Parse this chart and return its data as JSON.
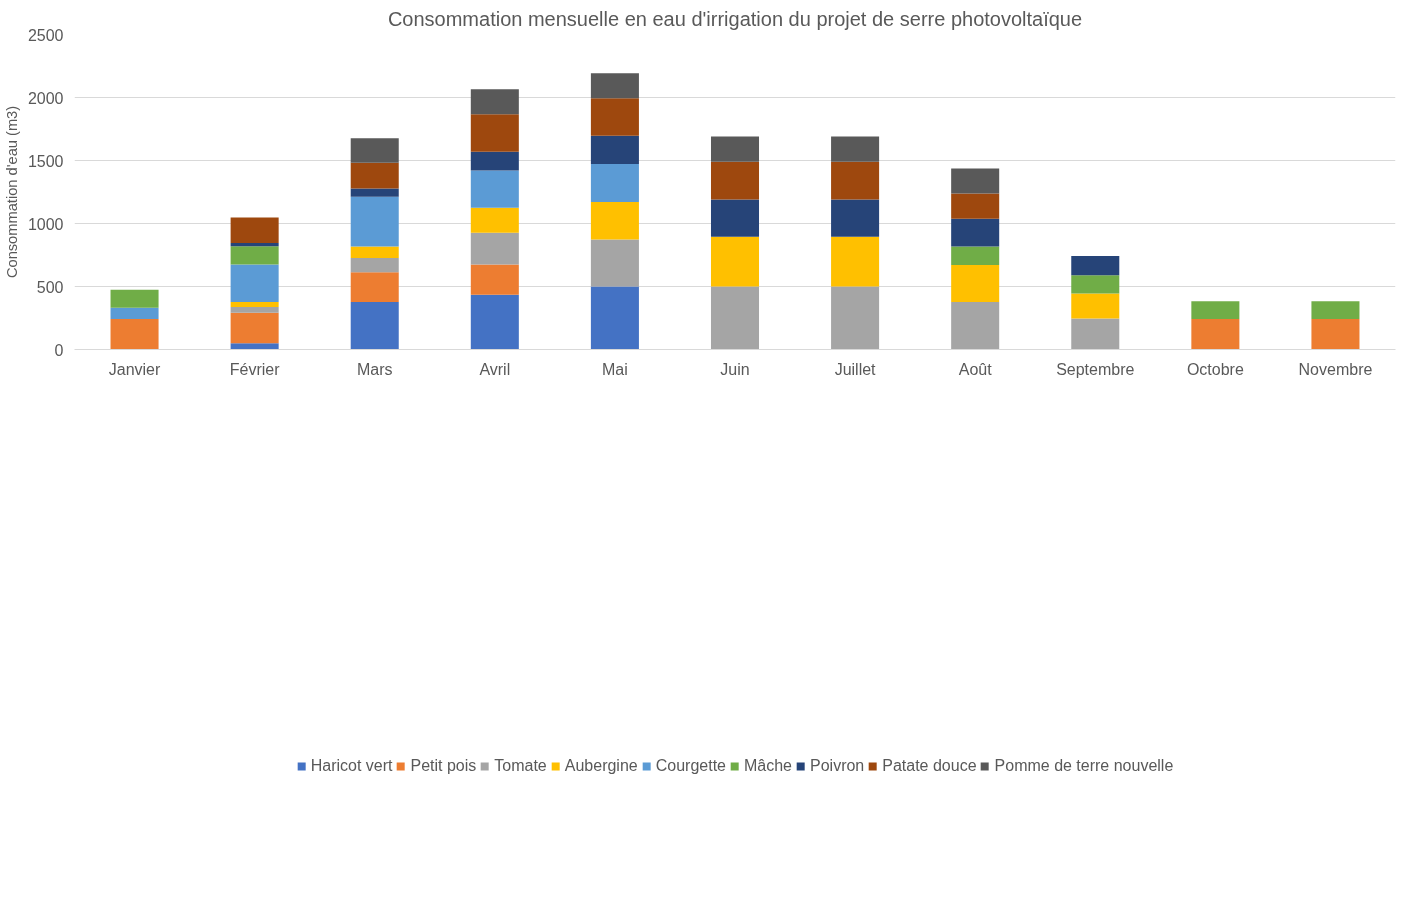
{
  "chart_data": {
    "type": "bar",
    "stacked": true,
    "title": "Consommation mensuelle en eau d'irrigation du projet de serre photovoltaïque",
    "ylabel": "Consommation d'eau (m3)",
    "categories": [
      "Janvier",
      "Février",
      "Mars",
      "Avril",
      "Mai",
      "Juin",
      "Juillet",
      "Août",
      "Septembre",
      "Octobre",
      "Novembre"
    ],
    "ylim": [
      0,
      2500
    ],
    "yticks": [
      0,
      500,
      1000,
      1500,
      2000,
      2500
    ],
    "grid": "y",
    "legend": "bottom",
    "series": [
      {
        "name": "Haricot vert",
        "color": "#4472c4",
        "values": [
          null,
          49,
          376,
          434,
          500,
          null,
          null,
          null,
          null,
          null,
          null
        ]
      },
      {
        "name": "Petit pois",
        "color": "#ed7d31",
        "values": [
          243,
          243,
          237,
          240,
          null,
          null,
          null,
          null,
          null,
          243,
          243
        ]
      },
      {
        "name": "Tomate",
        "color": "#a5a5a5",
        "values": [
          null,
          45,
          113,
          253,
          373,
          500,
          500,
          376,
          246,
          null,
          null
        ]
      },
      {
        "name": "Aubergine",
        "color": "#ffc000",
        "values": [
          null,
          39,
          91,
          198,
          298,
          395,
          395,
          295,
          198,
          null,
          null
        ]
      },
      {
        "name": "Courgette",
        "color": "#5b9bd5",
        "values": [
          88,
          298,
          396,
          295,
          302,
          null,
          null,
          null,
          null,
          null,
          null
        ]
      },
      {
        "name": "Mâche",
        "color": "#70ad47",
        "values": [
          143,
          146,
          null,
          null,
          null,
          null,
          null,
          146,
          146,
          139,
          139
        ]
      },
      {
        "name": "Poivron",
        "color": "#264478",
        "values": [
          null,
          26,
          65,
          149,
          224,
          295,
          295,
          220,
          152,
          null,
          null
        ]
      },
      {
        "name": "Patate douce",
        "color": "#9e480e",
        "values": [
          null,
          201,
          204,
          298,
          298,
          300,
          300,
          201,
          null,
          null,
          null
        ]
      },
      {
        "name": "Pomme de terre nouvelle",
        "color": "#595959",
        "values": [
          null,
          null,
          195,
          198,
          198,
          200,
          200,
          198,
          null,
          null,
          null
        ]
      }
    ]
  }
}
